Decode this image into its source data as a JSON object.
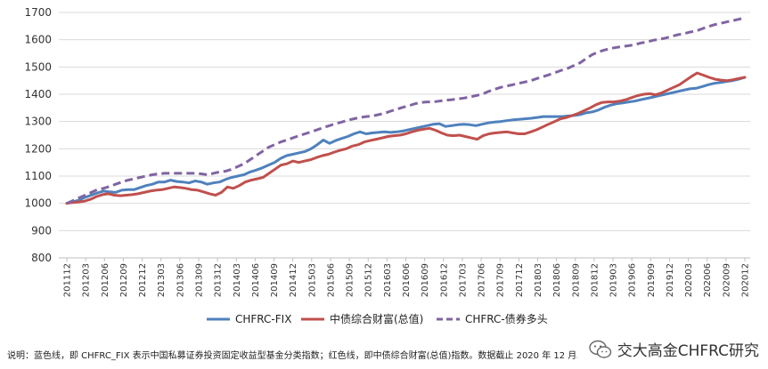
{
  "chart_data": {
    "type": "line",
    "title": "",
    "xlabel": "",
    "ylabel": "",
    "ylim": [
      800,
      1700
    ],
    "yticks": [
      800,
      900,
      1000,
      1100,
      1200,
      1300,
      1400,
      1500,
      1600,
      1700
    ],
    "grid": "horizontal",
    "legend_position": "bottom-center",
    "x_tick_labels": [
      "201112",
      "201203",
      "201206",
      "201209",
      "201212",
      "201303",
      "201306",
      "201309",
      "201312",
      "201403",
      "201406",
      "201409",
      "201412",
      "201503",
      "201506",
      "201509",
      "201512",
      "201603",
      "201606",
      "201609",
      "201612",
      "201703",
      "201706",
      "201709",
      "201712",
      "201803",
      "201806",
      "201809",
      "201812",
      "201903",
      "201906",
      "201909",
      "201912",
      "202003",
      "202006",
      "202009",
      "202012"
    ],
    "series": [
      {
        "name": "CHFRC-FIX",
        "color": "#4f81bd",
        "dash": "solid",
        "values": [
          1000,
          1005,
          1012,
          1022,
          1030,
          1038,
          1045,
          1042,
          1040,
          1048,
          1050,
          1050,
          1058,
          1065,
          1070,
          1078,
          1078,
          1085,
          1080,
          1078,
          1075,
          1082,
          1078,
          1070,
          1075,
          1078,
          1088,
          1095,
          1100,
          1105,
          1115,
          1122,
          1130,
          1140,
          1150,
          1165,
          1175,
          1180,
          1185,
          1190,
          1200,
          1215,
          1232,
          1220,
          1230,
          1238,
          1245,
          1255,
          1262,
          1255,
          1258,
          1260,
          1262,
          1260,
          1262,
          1265,
          1270,
          1275,
          1280,
          1285,
          1290,
          1292,
          1282,
          1285,
          1288,
          1290,
          1288,
          1285,
          1290,
          1295,
          1298,
          1300,
          1303,
          1306,
          1308,
          1310,
          1312,
          1315,
          1318,
          1318,
          1318,
          1318,
          1320,
          1322,
          1325,
          1332,
          1335,
          1342,
          1352,
          1360,
          1365,
          1368,
          1372,
          1375,
          1380,
          1385,
          1390,
          1395,
          1400,
          1405,
          1410,
          1415,
          1420,
          1422,
          1428,
          1435,
          1440,
          1443,
          1447,
          1450,
          1455,
          1462
        ]
      },
      {
        "name": "中债综合财富(总值)",
        "color": "#c0504d",
        "dash": "solid",
        "values": [
          1000,
          1003,
          1005,
          1008,
          1015,
          1025,
          1032,
          1035,
          1030,
          1028,
          1030,
          1032,
          1035,
          1040,
          1045,
          1048,
          1050,
          1055,
          1060,
          1058,
          1055,
          1050,
          1048,
          1042,
          1035,
          1030,
          1040,
          1060,
          1055,
          1065,
          1078,
          1085,
          1090,
          1095,
          1110,
          1125,
          1140,
          1145,
          1155,
          1150,
          1155,
          1160,
          1168,
          1175,
          1180,
          1188,
          1195,
          1200,
          1210,
          1215,
          1225,
          1230,
          1235,
          1240,
          1245,
          1248,
          1250,
          1255,
          1262,
          1268,
          1272,
          1275,
          1268,
          1258,
          1250,
          1248,
          1250,
          1245,
          1240,
          1235,
          1248,
          1255,
          1258,
          1260,
          1262,
          1258,
          1255,
          1255,
          1262,
          1270,
          1280,
          1290,
          1300,
          1310,
          1315,
          1322,
          1330,
          1340,
          1350,
          1362,
          1370,
          1372,
          1372,
          1375,
          1380,
          1388,
          1395,
          1400,
          1402,
          1398,
          1405,
          1415,
          1425,
          1435,
          1450,
          1465,
          1478,
          1470,
          1462,
          1455,
          1452,
          1450,
          1453,
          1458,
          1462
        ]
      },
      {
        "name": "CHFRC-债券多头",
        "color": "#8064a2",
        "dash": "dashed",
        "values": [
          1000,
          1010,
          1020,
          1030,
          1040,
          1050,
          1055,
          1062,
          1070,
          1078,
          1085,
          1090,
          1095,
          1100,
          1105,
          1108,
          1110,
          1110,
          1110,
          1110,
          1110,
          1110,
          1108,
          1105,
          1110,
          1115,
          1118,
          1125,
          1135,
          1145,
          1160,
          1175,
          1190,
          1205,
          1215,
          1225,
          1232,
          1240,
          1248,
          1255,
          1262,
          1270,
          1278,
          1285,
          1292,
          1298,
          1305,
          1310,
          1315,
          1318,
          1320,
          1325,
          1330,
          1338,
          1345,
          1352,
          1358,
          1365,
          1370,
          1372,
          1372,
          1375,
          1378,
          1380,
          1383,
          1386,
          1390,
          1395,
          1400,
          1410,
          1418,
          1425,
          1430,
          1435,
          1440,
          1445,
          1450,
          1458,
          1465,
          1472,
          1480,
          1488,
          1495,
          1505,
          1515,
          1530,
          1545,
          1555,
          1562,
          1568,
          1572,
          1575,
          1578,
          1582,
          1588,
          1592,
          1598,
          1602,
          1606,
          1612,
          1618,
          1622,
          1628,
          1632,
          1640,
          1648,
          1655,
          1660,
          1665,
          1670,
          1675,
          1680
        ]
      }
    ]
  },
  "footer_note": "说明：蓝色线，即 CHFRC_FIX 表示中国私募证券投资固定收益型基金分类指数；红色线，即中债综合财富(总值)指数。数据截止 2020 年 12 月。",
  "watermark": {
    "text": "交大高金CHFRC研究",
    "icon": "wechat-icon"
  }
}
